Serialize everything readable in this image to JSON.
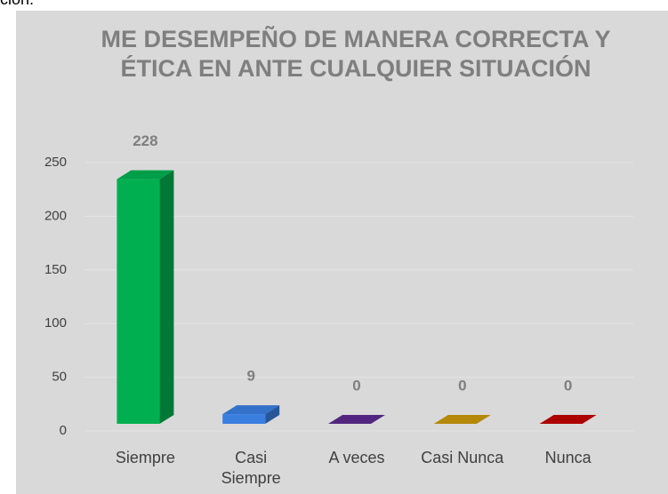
{
  "caption": "ción.",
  "chart_data": {
    "type": "bar3d",
    "title": "ME DESEMPEÑO DE MANERA CORRECTA Y ÉTICA EN ANTE CUALQUIER SITUACIÓN",
    "categories": [
      "Siempre",
      "Casi Siempre",
      "A veces",
      "Casi Nunca",
      "Nunca"
    ],
    "values": [
      228,
      9,
      0,
      0,
      0
    ],
    "colors": [
      "#00b050",
      "#3a7ee0",
      "#5b2a8e",
      "#c9970a",
      "#c00000"
    ],
    "ylim": [
      0,
      250
    ],
    "yticks": [
      0,
      50,
      100,
      150,
      200,
      250
    ],
    "grid": true
  }
}
